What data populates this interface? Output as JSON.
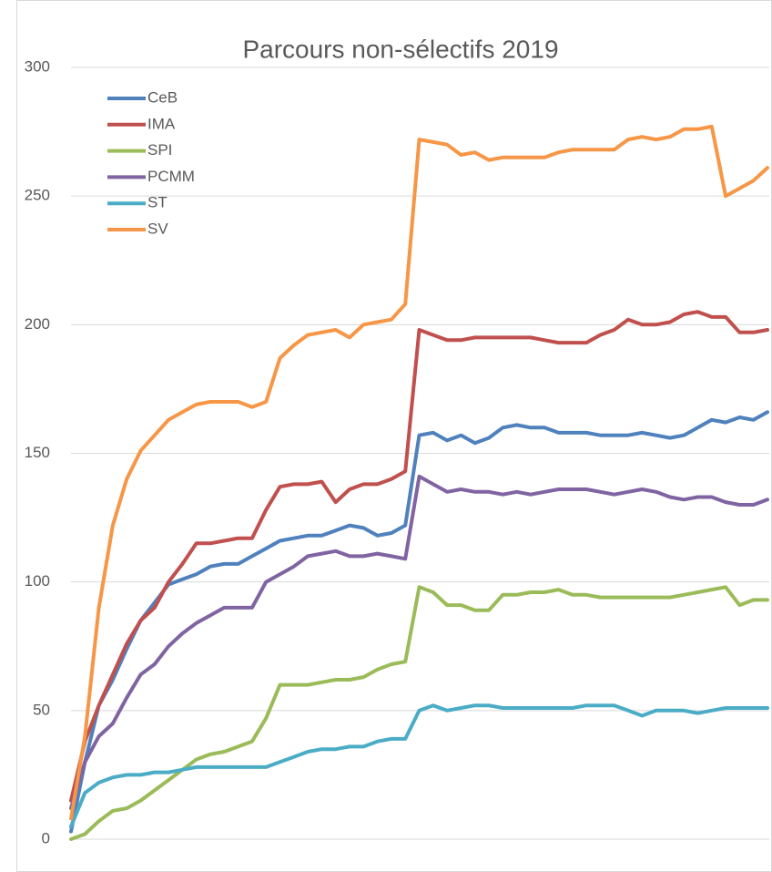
{
  "chart_data": {
    "type": "line",
    "title": "Parcours non-sélectifs 2019",
    "categories": [
      null,
      null,
      null,
      null,
      null,
      null,
      null,
      null,
      null,
      null,
      null,
      null,
      null,
      null,
      null,
      null,
      null,
      null,
      null,
      null,
      null,
      null,
      null,
      null,
      null,
      null,
      null,
      null,
      null,
      null,
      null,
      null,
      null,
      null,
      null,
      null,
      null,
      null,
      null,
      null,
      null,
      null,
      null,
      null,
      null,
      null,
      null,
      null,
      null,
      null,
      null
    ],
    "series": [
      {
        "name": "CeB",
        "color": "#4f81bd",
        "values": [
          3,
          30,
          52,
          62,
          74,
          85,
          92,
          99,
          101,
          103,
          106,
          107,
          107,
          110,
          113,
          116,
          117,
          118,
          118,
          120,
          122,
          121,
          118,
          119,
          122,
          157,
          158,
          155,
          157,
          154,
          156,
          160,
          161,
          160,
          160,
          158,
          158,
          158,
          157,
          157,
          157,
          158,
          157,
          156,
          157,
          160,
          163,
          162,
          164,
          163,
          166
        ]
      },
      {
        "name": "IMA",
        "color": "#c0504d",
        "values": [
          15,
          38,
          52,
          64,
          76,
          85,
          90,
          100,
          107,
          115,
          115,
          116,
          117,
          117,
          128,
          137,
          138,
          138,
          139,
          131,
          136,
          138,
          138,
          140,
          143,
          198,
          196,
          194,
          194,
          195,
          195,
          195,
          195,
          195,
          194,
          193,
          193,
          193,
          196,
          198,
          202,
          200,
          200,
          201,
          204,
          205,
          203,
          203,
          197,
          197,
          198
        ]
      },
      {
        "name": "SPI",
        "color": "#9bbb59",
        "values": [
          0,
          2,
          7,
          11,
          12,
          15,
          19,
          23,
          27,
          31,
          33,
          34,
          36,
          38,
          47,
          60,
          60,
          60,
          61,
          62,
          62,
          63,
          66,
          68,
          69,
          98,
          96,
          91,
          91,
          89,
          89,
          95,
          95,
          96,
          96,
          97,
          95,
          95,
          94,
          94,
          94,
          94,
          94,
          94,
          95,
          96,
          97,
          98,
          91,
          93,
          93
        ]
      },
      {
        "name": "PCMM",
        "color": "#8064a2",
        "values": [
          12,
          30,
          40,
          45,
          55,
          64,
          68,
          75,
          80,
          84,
          87,
          90,
          90,
          90,
          100,
          103,
          106,
          110,
          111,
          112,
          110,
          110,
          111,
          110,
          109,
          141,
          138,
          135,
          136,
          135,
          135,
          134,
          135,
          134,
          135,
          136,
          136,
          136,
          135,
          134,
          135,
          136,
          135,
          133,
          132,
          133,
          133,
          131,
          130,
          130,
          132
        ]
      },
      {
        "name": "ST",
        "color": "#4bacc6",
        "values": [
          5,
          18,
          22,
          24,
          25,
          25,
          26,
          26,
          27,
          28,
          28,
          28,
          28,
          28,
          28,
          30,
          32,
          34,
          35,
          35,
          36,
          36,
          38,
          39,
          39,
          50,
          52,
          50,
          51,
          52,
          52,
          51,
          51,
          51,
          51,
          51,
          51,
          52,
          52,
          52,
          50,
          48,
          50,
          50,
          50,
          49,
          50,
          51,
          51,
          51,
          51
        ]
      },
      {
        "name": "SV",
        "color": "#f79646",
        "values": [
          8,
          40,
          90,
          122,
          140,
          151,
          157,
          163,
          166,
          169,
          170,
          170,
          170,
          168,
          170,
          187,
          192,
          196,
          197,
          198,
          195,
          200,
          201,
          202,
          208,
          272,
          271,
          270,
          266,
          267,
          264,
          265,
          265,
          265,
          265,
          267,
          268,
          268,
          268,
          268,
          272,
          273,
          272,
          273,
          276,
          276,
          277,
          250,
          253,
          256,
          261
        ]
      }
    ],
    "ylim": [
      0,
      300
    ],
    "yticks": [
      0,
      50,
      100,
      150,
      200,
      250,
      300
    ],
    "grid": true,
    "legend": "top-left"
  }
}
